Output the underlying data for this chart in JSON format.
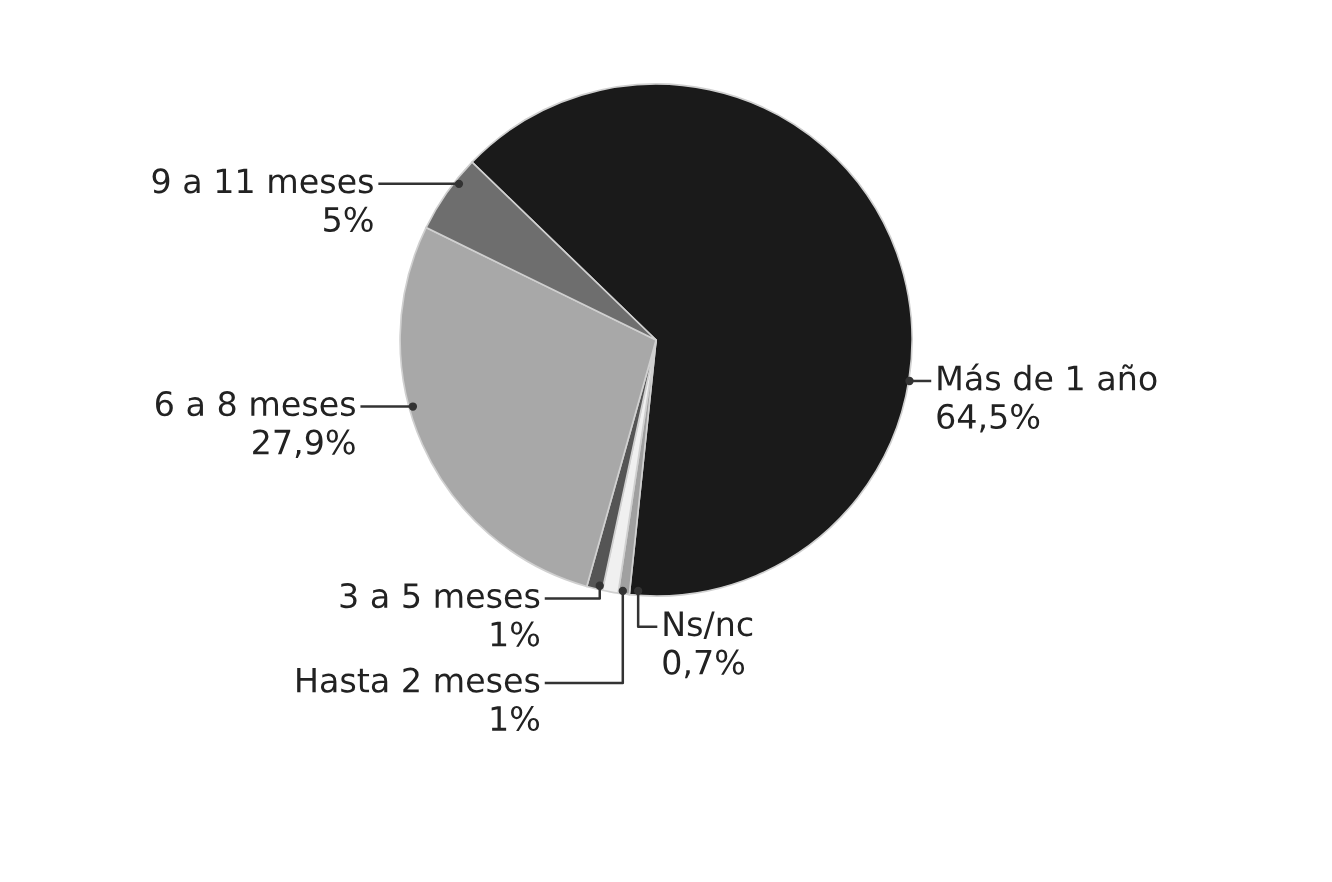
{
  "chart_data": {
    "type": "pie",
    "categories": [
      "Más de 1 año",
      "Ns/nc",
      "Hasta 2 meses",
      "3 a 5 meses",
      "6 a 8 meses",
      "9 a 11 meses"
    ],
    "values": [
      64.5,
      0.7,
      1,
      1,
      27.9,
      5
    ],
    "value_labels": [
      "64,5%",
      "0,7%",
      "1%",
      "1%",
      "27,9%",
      "5%"
    ],
    "colors": [
      "#1a1a1a",
      "#a0a0a0",
      "#f0f0f0",
      "#555555",
      "#a8a8a8",
      "#6e6e6e"
    ]
  }
}
